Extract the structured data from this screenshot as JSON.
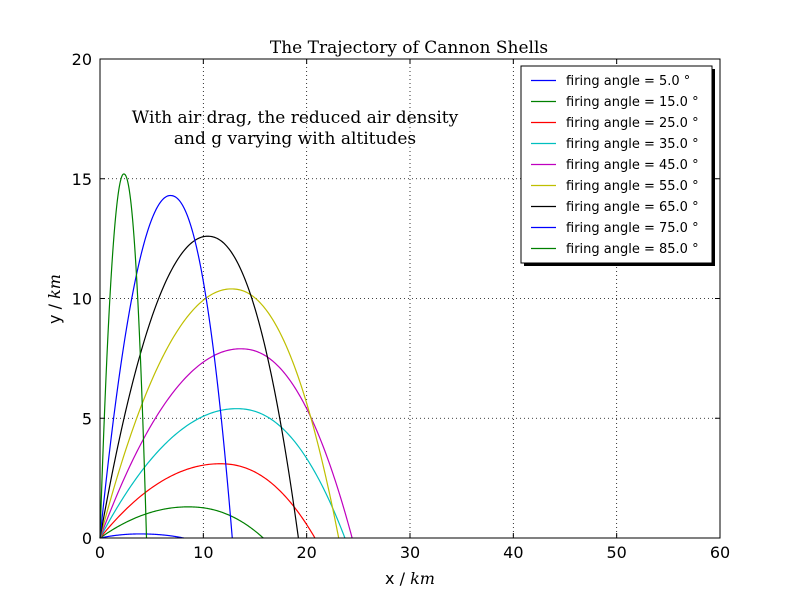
{
  "chart_data": {
    "type": "line",
    "title": "The Trajectory of Cannon Shells",
    "annotation": [
      "With air drag, the reduced air density",
      "and g varying with altitudes"
    ],
    "xlabel": "x / ",
    "xlabel_unit": "km",
    "ylabel": "y / ",
    "ylabel_unit": "km",
    "xlim": [
      0,
      60
    ],
    "ylim": [
      0,
      20
    ],
    "xticks": [
      0,
      10,
      20,
      30,
      40,
      50,
      60
    ],
    "yticks": [
      0,
      5,
      10,
      15,
      20
    ],
    "grid": true,
    "legend_position": "top-right",
    "series": [
      {
        "name": "firing angle = 5.0 °",
        "color": "#0000ff",
        "range": 8.1,
        "apex_x": 3.8,
        "apex_y": 0.17
      },
      {
        "name": "firing angle = 15.0 °",
        "color": "#008000",
        "range": 15.8,
        "apex_x": 8.5,
        "apex_y": 1.3
      },
      {
        "name": "firing angle = 25.0 °",
        "color": "#ff0000",
        "range": 20.8,
        "apex_x": 11.6,
        "apex_y": 3.1
      },
      {
        "name": "firing angle = 35.0 °",
        "color": "#00bfbf",
        "range": 23.7,
        "apex_x": 13.2,
        "apex_y": 5.4
      },
      {
        "name": "firing angle = 45.0 °",
        "color": "#bf00bf",
        "range": 24.4,
        "apex_x": 13.6,
        "apex_y": 7.9
      },
      {
        "name": "firing angle = 55.0 °",
        "color": "#bfbf00",
        "range": 23.1,
        "apex_x": 12.7,
        "apex_y": 10.4
      },
      {
        "name": "firing angle = 65.0 °",
        "color": "#000000",
        "range": 19.2,
        "apex_x": 10.4,
        "apex_y": 12.6
      },
      {
        "name": "firing angle = 75.0 °",
        "color": "#0000ff",
        "range": 12.8,
        "apex_x": 6.8,
        "apex_y": 14.3
      },
      {
        "name": "firing angle = 85.0 °",
        "color": "#008000",
        "range": 4.5,
        "apex_x": 2.3,
        "apex_y": 15.2
      }
    ]
  }
}
